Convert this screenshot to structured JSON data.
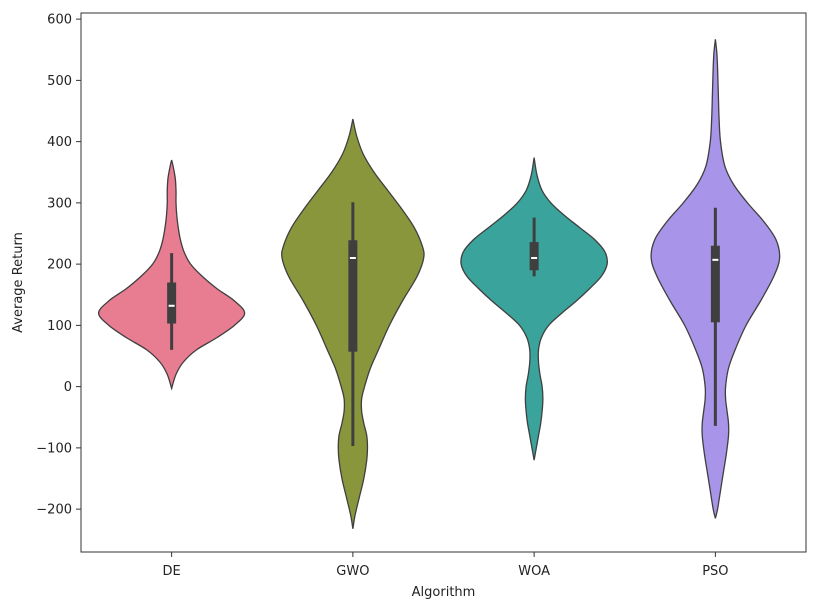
{
  "chart_data": {
    "type": "violin",
    "xlabel": "Algorithm",
    "ylabel": "Average Return",
    "ylim": [
      -270,
      610
    ],
    "yticks": [
      -200,
      -100,
      0,
      100,
      200,
      300,
      400,
      500,
      600
    ],
    "ytick_labels": [
      "−200",
      "−100",
      "0",
      "100",
      "200",
      "300",
      "400",
      "500",
      "600"
    ],
    "categories": [
      "DE",
      "GWO",
      "WOA",
      "PSO"
    ],
    "grid": false,
    "series": [
      {
        "category": "DE",
        "color": "#e87d91",
        "density": [
          [
            -3,
            0.0
          ],
          [
            20,
            0.06
          ],
          [
            40,
            0.16
          ],
          [
            60,
            0.34
          ],
          [
            80,
            0.62
          ],
          [
            100,
            0.86
          ],
          [
            120,
            1.0
          ],
          [
            140,
            0.86
          ],
          [
            160,
            0.62
          ],
          [
            180,
            0.42
          ],
          [
            200,
            0.26
          ],
          [
            220,
            0.17
          ],
          [
            240,
            0.12
          ],
          [
            260,
            0.09
          ],
          [
            280,
            0.07
          ],
          [
            300,
            0.06
          ],
          [
            320,
            0.06
          ],
          [
            340,
            0.05
          ],
          [
            360,
            0.02
          ],
          [
            370,
            0.0
          ]
        ],
        "whisker_low": 60,
        "q1": 103,
        "median": 132,
        "q3": 170,
        "whisker_high": 218
      },
      {
        "category": "GWO",
        "color": "#8a963c",
        "density": [
          [
            -232,
            0.0
          ],
          [
            -210,
            0.03
          ],
          [
            -180,
            0.09
          ],
          [
            -150,
            0.15
          ],
          [
            -120,
            0.19
          ],
          [
            -100,
            0.2
          ],
          [
            -80,
            0.19
          ],
          [
            -60,
            0.15
          ],
          [
            -40,
            0.12
          ],
          [
            -20,
            0.12
          ],
          [
            0,
            0.16
          ],
          [
            30,
            0.24
          ],
          [
            60,
            0.35
          ],
          [
            100,
            0.5
          ],
          [
            140,
            0.68
          ],
          [
            180,
            0.88
          ],
          [
            210,
            0.97
          ],
          [
            230,
            0.95
          ],
          [
            260,
            0.84
          ],
          [
            290,
            0.67
          ],
          [
            320,
            0.48
          ],
          [
            350,
            0.29
          ],
          [
            380,
            0.14
          ],
          [
            410,
            0.05
          ],
          [
            437,
            0.0
          ]
        ],
        "whisker_low": -97,
        "q1": 57,
        "median": 210,
        "q3": 239,
        "whisker_high": 301
      },
      {
        "category": "WOA",
        "color": "#3aa39b",
        "density": [
          [
            -120,
            0.0
          ],
          [
            -100,
            0.03
          ],
          [
            -80,
            0.06
          ],
          [
            -60,
            0.09
          ],
          [
            -40,
            0.11
          ],
          [
            -20,
            0.12
          ],
          [
            0,
            0.11
          ],
          [
            20,
            0.08
          ],
          [
            40,
            0.06
          ],
          [
            60,
            0.06
          ],
          [
            80,
            0.1
          ],
          [
            100,
            0.2
          ],
          [
            120,
            0.38
          ],
          [
            140,
            0.58
          ],
          [
            160,
            0.76
          ],
          [
            180,
            0.92
          ],
          [
            200,
            1.0
          ],
          [
            220,
            0.97
          ],
          [
            240,
            0.83
          ],
          [
            260,
            0.62
          ],
          [
            280,
            0.41
          ],
          [
            300,
            0.23
          ],
          [
            320,
            0.11
          ],
          [
            345,
            0.04
          ],
          [
            374,
            0.0
          ]
        ],
        "whisker_low": 180,
        "q1": 190,
        "median": 210,
        "q3": 236,
        "whisker_high": 276
      },
      {
        "category": "PSO",
        "color": "#a894e8",
        "density": [
          [
            -215,
            0.0
          ],
          [
            -200,
            0.03
          ],
          [
            -170,
            0.07
          ],
          [
            -140,
            0.11
          ],
          [
            -110,
            0.15
          ],
          [
            -80,
            0.18
          ],
          [
            -60,
            0.18
          ],
          [
            -40,
            0.16
          ],
          [
            -20,
            0.14
          ],
          [
            0,
            0.14
          ],
          [
            30,
            0.18
          ],
          [
            60,
            0.27
          ],
          [
            100,
            0.42
          ],
          [
            140,
            0.62
          ],
          [
            180,
            0.8
          ],
          [
            210,
            0.88
          ],
          [
            240,
            0.83
          ],
          [
            270,
            0.66
          ],
          [
            300,
            0.44
          ],
          [
            330,
            0.25
          ],
          [
            360,
            0.13
          ],
          [
            400,
            0.07
          ],
          [
            440,
            0.05
          ],
          [
            480,
            0.04
          ],
          [
            520,
            0.03
          ],
          [
            545,
            0.02
          ],
          [
            567,
            0.0
          ]
        ],
        "whisker_low": -64,
        "q1": 105,
        "median": 207,
        "q3": 230,
        "whisker_high": 292
      }
    ]
  }
}
